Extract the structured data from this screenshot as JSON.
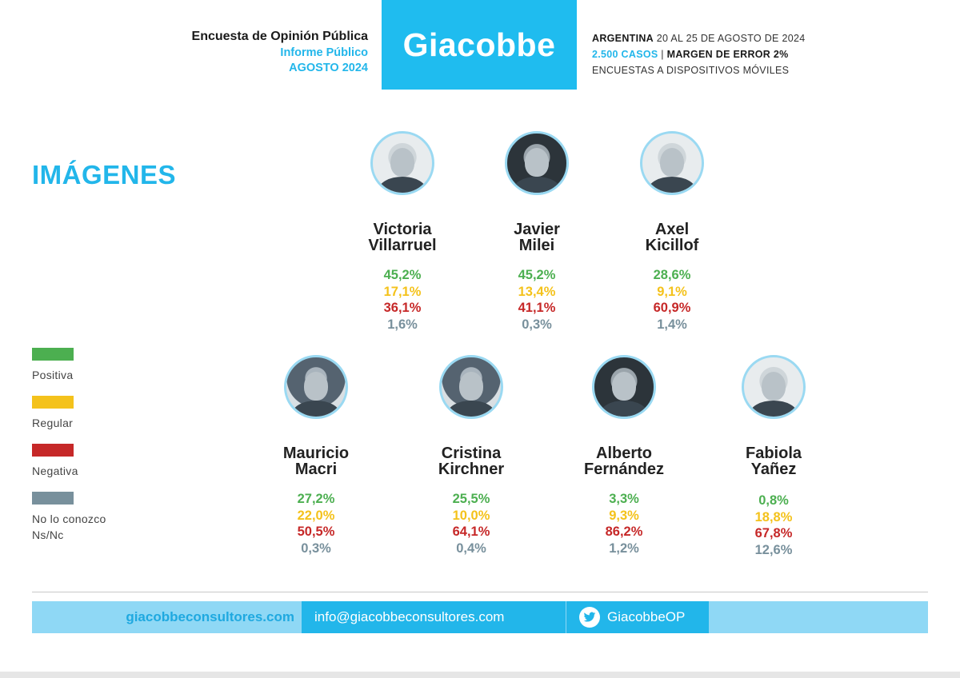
{
  "header": {
    "title": "Encuesta de Opinión Pública",
    "subtitle": "Informe Público",
    "period": "AGOSTO 2024",
    "brand": "Giacobbe",
    "country": "ARGENTINA",
    "dates": " 20 AL 25 DE AGOSTO DE 2024",
    "cases": "2.500 CASOS",
    "separator": " | ",
    "margin": "MARGEN DE ERROR 2%",
    "method": "ENCUESTAS A DISPOSITIVOS MÓVILES"
  },
  "section_title": "IMÁGENES",
  "candidates": [
    {
      "line1": "Victoria",
      "line2": "Villarruel",
      "positiva": "45,2%",
      "regular": "17,1%",
      "negativa": "36,1%",
      "no_conozco": "1,6%"
    },
    {
      "line1": "Javier",
      "line2": "Milei",
      "positiva": "45,2%",
      "regular": "13,4%",
      "negativa": "41,1%",
      "no_conozco": "0,3%"
    },
    {
      "line1": "Axel",
      "line2": "Kicillof",
      "positiva": "28,6%",
      "regular": "9,1%",
      "negativa": "60,9%",
      "no_conozco": "1,4%"
    },
    {
      "line1": "Mauricio",
      "line2": "Macri",
      "positiva": "27,2%",
      "regular": "22,0%",
      "negativa": "50,5%",
      "no_conozco": "0,3%"
    },
    {
      "line1": "Cristina",
      "line2": "Kirchner",
      "positiva": "25,5%",
      "regular": "10,0%",
      "negativa": "64,1%",
      "no_conozco": "0,4%"
    },
    {
      "line1": "Alberto",
      "line2": "Fernández",
      "positiva": "3,3%",
      "regular": "9,3%",
      "negativa": "86,2%",
      "no_conozco": "1,2%"
    },
    {
      "line1": "Fabiola",
      "line2": "Yañez",
      "positiva": "0,8%",
      "regular": "18,8%",
      "negativa": "67,8%",
      "no_conozco": "12,6%"
    }
  ],
  "legend": {
    "positiva": "Positiva",
    "regular": "Regular",
    "negativa": "Negativa",
    "no_conozco_1": "No lo conozco",
    "no_conozco_2": "Ns/Nc"
  },
  "colors": {
    "positiva": "#4caf50",
    "regular": "#f4c21b",
    "negativa": "#c62828",
    "no_conozco": "#78909c",
    "brand": "#1fbcef"
  },
  "footer": {
    "website": "giacobbeconsultores.com",
    "email": "info@giacobbeconsultores.com",
    "twitter": "GiacobbeOP",
    "twitter_icon": "twitter-bird-icon"
  }
}
